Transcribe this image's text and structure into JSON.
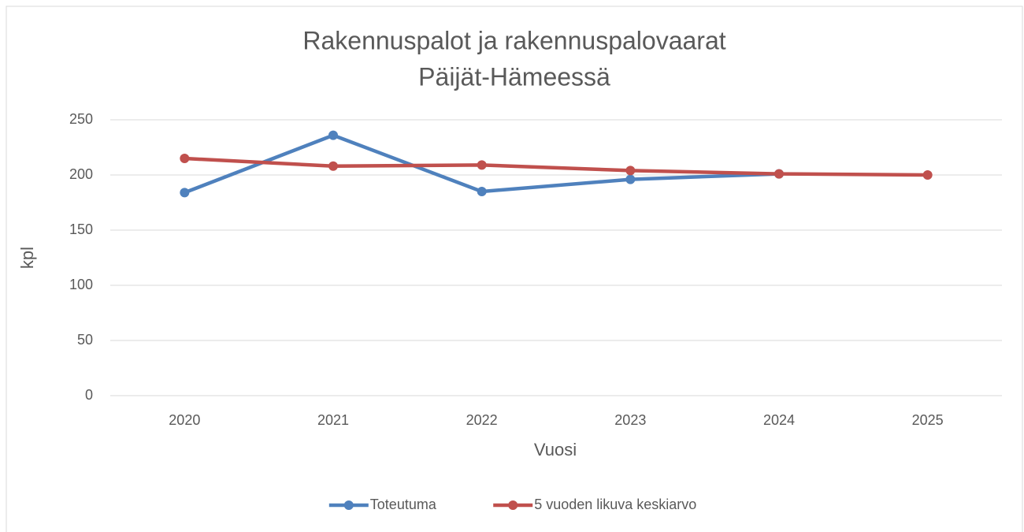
{
  "chart_data": {
    "type": "line",
    "title": [
      "Rakennuspalot ja rakennuspalovaarat",
      "Päijät-Hämeessä"
    ],
    "x_label": "Vuosi",
    "y_label": "kpl",
    "categories": [
      "2020",
      "2021",
      "2022",
      "2023",
      "2024",
      "2025"
    ],
    "series": [
      {
        "name": "Toteutuma",
        "color": "#4f81bd",
        "values": [
          184,
          236,
          185,
          196,
          201,
          null
        ]
      },
      {
        "name": "5 vuoden likuva keskiarvo",
        "color": "#c0504d",
        "values": [
          215,
          208,
          209,
          204,
          201,
          200
        ]
      }
    ],
    "ylim": [
      0,
      250
    ],
    "yticks": [
      0,
      50,
      100,
      150,
      200,
      250
    ],
    "grid": true,
    "legend": "bottom"
  }
}
